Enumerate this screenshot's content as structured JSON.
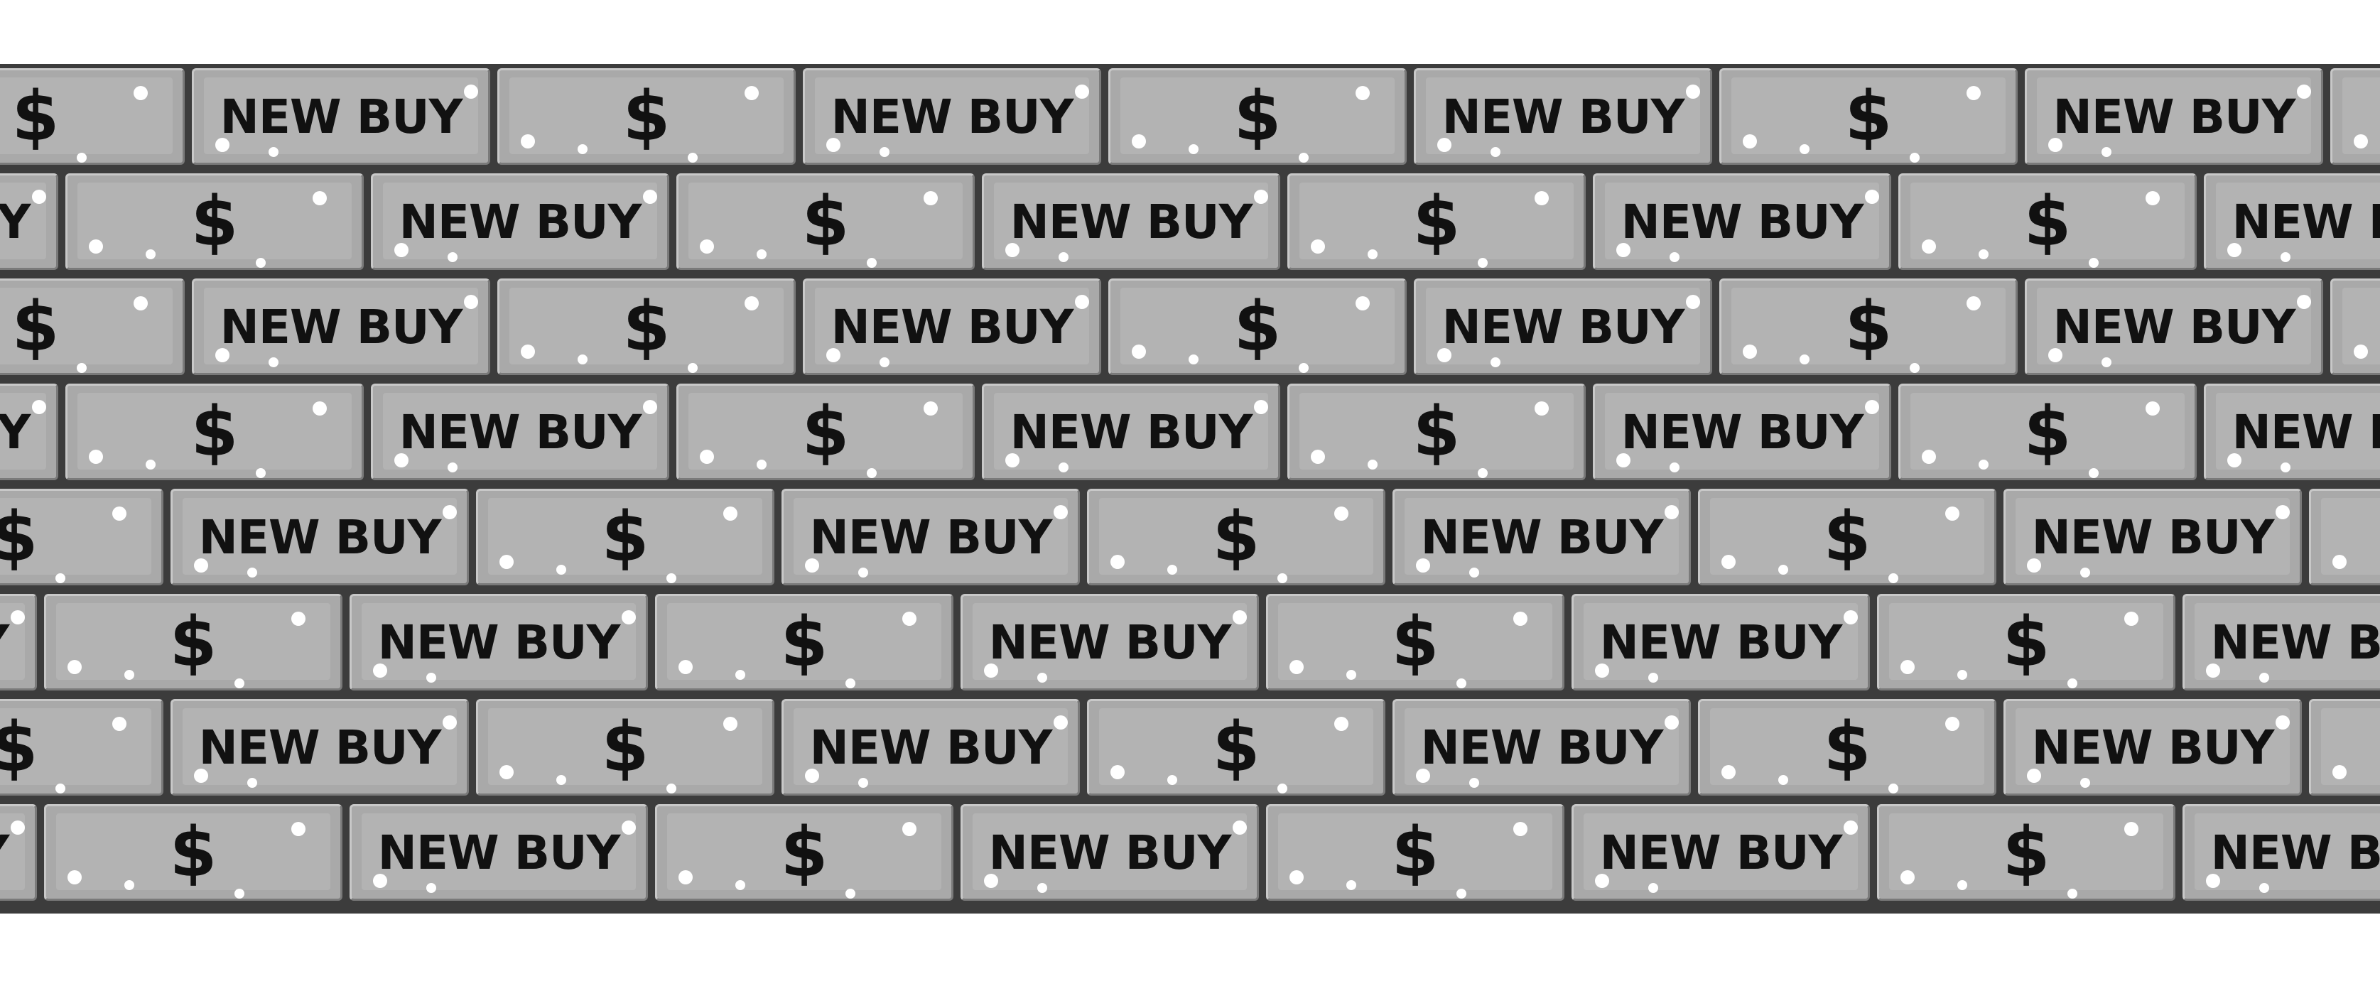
{
  "pattern": {
    "dollar_label": "$",
    "buy_label": "NEW BUY",
    "brick_color": "#a9a9a9",
    "mortar_color": "#3c3c3c",
    "dot_color": "#ffffff"
  }
}
